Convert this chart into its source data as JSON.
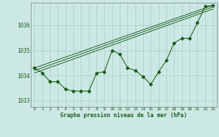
{
  "x": [
    0,
    1,
    2,
    3,
    4,
    5,
    6,
    7,
    8,
    9,
    10,
    11,
    12,
    13,
    14,
    15,
    16,
    17,
    18,
    19,
    20,
    21,
    22,
    23
  ],
  "y_main": [
    1034.3,
    1034.1,
    1033.75,
    1033.75,
    1033.45,
    1033.38,
    1033.38,
    1033.38,
    1034.1,
    1034.15,
    1035.0,
    1034.85,
    1034.3,
    1034.2,
    1033.95,
    1033.65,
    1034.15,
    1034.6,
    1035.3,
    1035.48,
    1035.48,
    1036.1,
    1036.75,
    1036.8
  ],
  "trend_lines": [
    {
      "x": [
        0,
        23
      ],
      "y": [
        1034.3,
        1036.8
      ]
    },
    {
      "x": [
        0,
        23
      ],
      "y": [
        1034.2,
        1036.73
      ]
    },
    {
      "x": [
        0,
        23
      ],
      "y": [
        1034.1,
        1036.65
      ]
    }
  ],
  "background_color": "#cce8e4",
  "grid_color": "#aacfcc",
  "line_color": "#1a5e1a",
  "text_color": "#1a5e1a",
  "xlabel": "Graphe pression niveau de la mer (hPa)",
  "ylim": [
    1032.75,
    1036.9
  ],
  "yticks": [
    1033,
    1034,
    1035,
    1036
  ],
  "xticks": [
    0,
    1,
    2,
    3,
    4,
    5,
    6,
    7,
    8,
    9,
    10,
    11,
    12,
    13,
    14,
    15,
    16,
    17,
    18,
    19,
    20,
    21,
    22,
    23
  ],
  "xlim": [
    -0.5,
    23.5
  ]
}
